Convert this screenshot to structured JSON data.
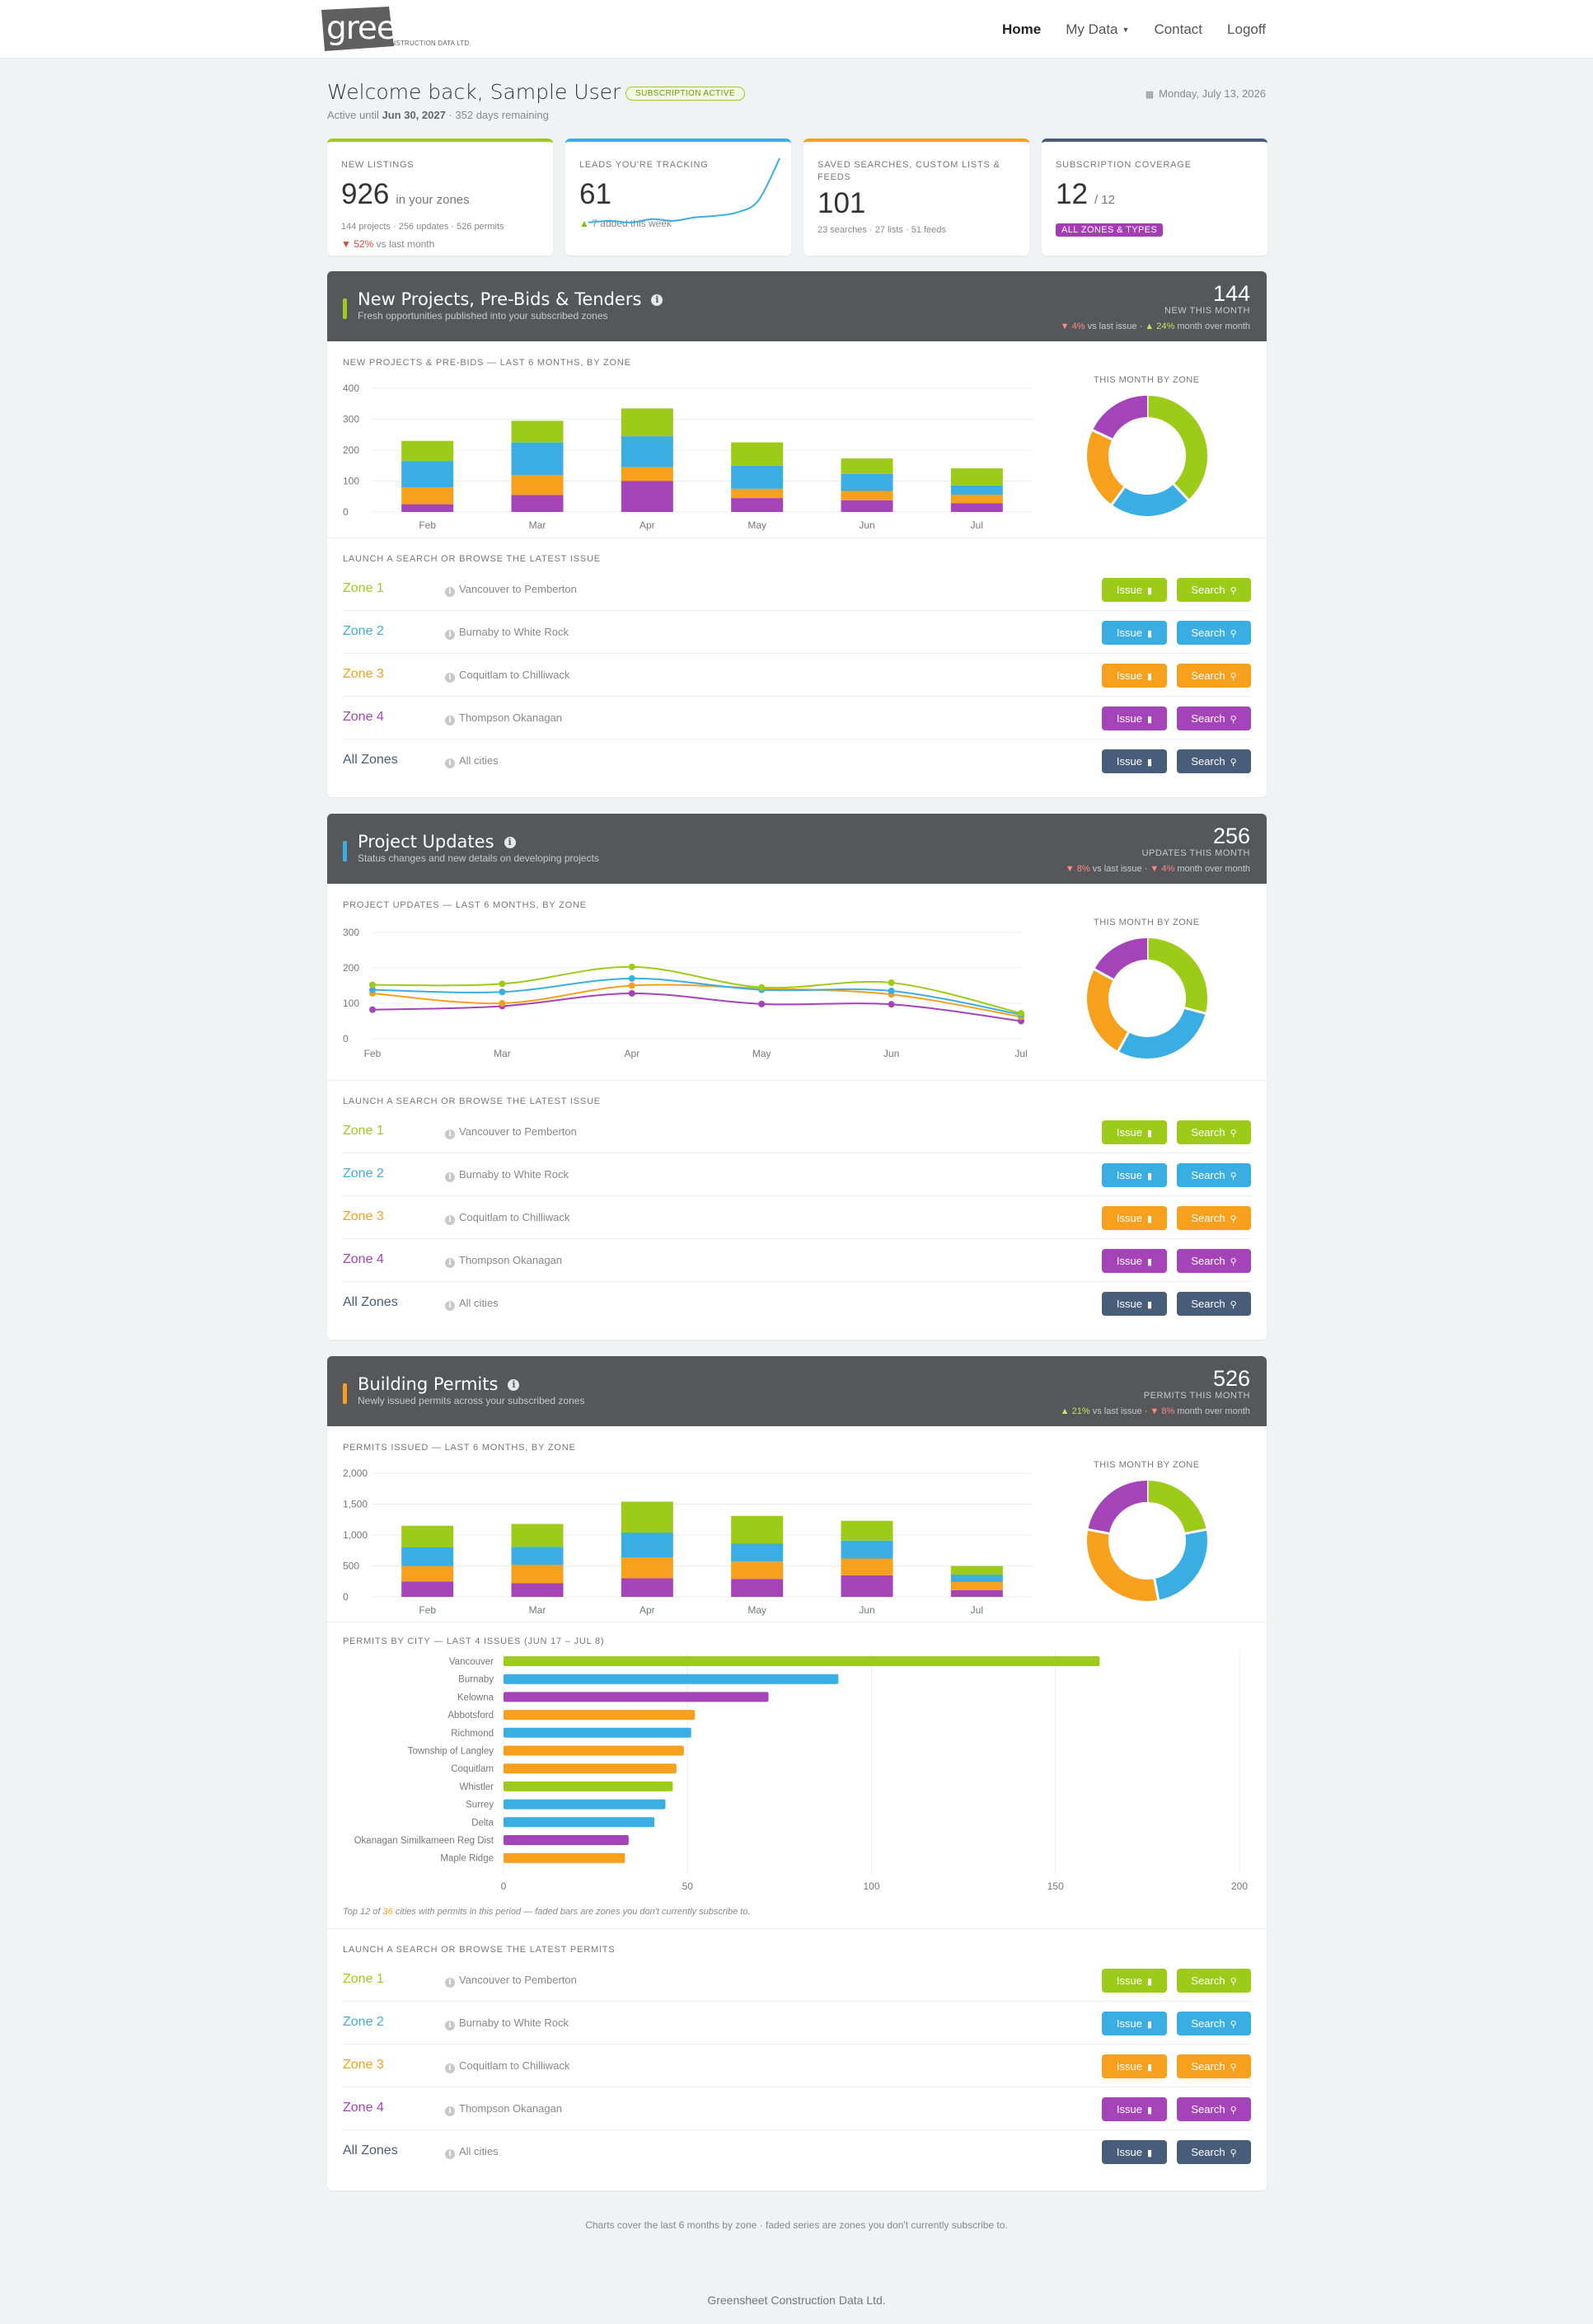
{
  "nav": {
    "logo_main": "greensheet",
    "logo_sub": "CONSTRUCTION DATA LTD.",
    "links": [
      "Home",
      "My Data",
      "Contact",
      "Logoff"
    ]
  },
  "header": {
    "welcome": "Welcome back, Sample User",
    "badge": "SUBSCRIPTION ACTIVE",
    "active_prefix": "Active until",
    "active_date": "Jun 30, 2027",
    "active_suffix": "· 352 days remaining",
    "date": "Monday, July 13, 2026"
  },
  "kpis": {
    "new_listings": {
      "label": "NEW LISTINGS",
      "value": "926",
      "unit": "in your zones",
      "sub": "144 projects · 256 updates · 526 permits",
      "delta": "52%",
      "delta_text": "vs last month"
    },
    "leads": {
      "label": "LEADS YOU'RE TRACKING",
      "value": "61",
      "delta": "7",
      "delta_text": "added this week",
      "sparkline": [
        2,
        3,
        2,
        4,
        3,
        5,
        6,
        8,
        15,
        40
      ]
    },
    "saved": {
      "label": "SAVED SEARCHES, CUSTOM LISTS & FEEDS",
      "value": "101",
      "sub": "23 searches · 27 lists · 51 feeds"
    },
    "coverage": {
      "label": "SUBSCRIPTION COVERAGE",
      "value": "12",
      "total": "/ 12",
      "tag": "ALL ZONES & TYPES"
    }
  },
  "colors": {
    "zone1": "#9ccb19",
    "zone2": "#3aaee3",
    "zone3": "#f7a01d",
    "zone4": "#a543b8",
    "all": "#475d7a",
    "head": "#56575b"
  },
  "zones": [
    {
      "name": "Zone 1",
      "desc": "Vancouver to Pemberton"
    },
    {
      "name": "Zone 2",
      "desc": "Burnaby to White Rock"
    },
    {
      "name": "Zone 3",
      "desc": "Coquitlam to Chilliwack"
    },
    {
      "name": "Zone 4",
      "desc": "Thompson Okanagan"
    },
    {
      "name": "All Zones",
      "desc": "All cities"
    }
  ],
  "buttons": {
    "issue": "Issue",
    "search": "Search"
  },
  "sections": {
    "projects": {
      "title": "New Projects, Pre-Bids & Tenders",
      "desc": "Fresh opportunities published into your subscribed zones",
      "count": "144",
      "count_label": "NEW THIS MONTH",
      "d1": "4%",
      "d1_text": "vs last issue",
      "d2": "24%",
      "d2_text": "month over month",
      "chart_title": "NEW PROJECTS & PRE-BIDS — LAST 6 MONTHS, BY ZONE",
      "donut_title": "THIS MONTH BY ZONE",
      "launch_title": "LAUNCH A SEARCH OR BROWSE THE LATEST ISSUE"
    },
    "updates": {
      "title": "Project Updates",
      "desc": "Status changes and new details on developing projects",
      "count": "256",
      "count_label": "UPDATES THIS MONTH",
      "d1": "8%",
      "d1_text": "vs last issue",
      "d2": "4%",
      "d2_text": "month over month",
      "chart_title": "PROJECT UPDATES — LAST 6 MONTHS, BY ZONE",
      "donut_title": "THIS MONTH BY ZONE",
      "launch_title": "LAUNCH A SEARCH OR BROWSE THE LATEST ISSUE"
    },
    "permits": {
      "title": "Building Permits",
      "desc": "Newly issued permits across your subscribed zones",
      "count": "526",
      "count_label": "PERMITS THIS MONTH",
      "d1": "21%",
      "d1_text": "vs last issue",
      "d2": "8%",
      "d2_text": "month over month",
      "chart_title": "PERMITS ISSUED — LAST 6 MONTHS, BY ZONE",
      "donut_title": "THIS MONTH BY ZONE",
      "city_title": "PERMITS BY CITY — LAST 4 ISSUES (JUN 17 – JUL 8)",
      "city_note_a": "Top 12 of",
      "city_note_n": "36",
      "city_note_b": "cities with permits in this period — faded bars are zones you don't currently subscribe to.",
      "launch_title": "LAUNCH A SEARCH OR BROWSE THE LATEST PERMITS"
    }
  },
  "footnote": "Charts cover the last 6 months by zone · faded series are zones you don't currently subscribe to.",
  "footer": "Greensheet Construction Data Ltd.",
  "chart_data": [
    {
      "type": "bar",
      "id": "projects-bar",
      "stacked": true,
      "categories": [
        "Feb",
        "Mar",
        "Apr",
        "May",
        "Jun",
        "Jul"
      ],
      "ylim": [
        0,
        400
      ],
      "yticks": [
        0,
        100,
        200,
        300,
        400
      ],
      "series": [
        {
          "zone": "zone4",
          "values": [
            25,
            55,
            100,
            45,
            38,
            28
          ]
        },
        {
          "zone": "zone3",
          "values": [
            55,
            65,
            45,
            30,
            30,
            28
          ]
        },
        {
          "zone": "zone2",
          "values": [
            85,
            105,
            100,
            75,
            55,
            30
          ]
        },
        {
          "zone": "zone1",
          "values": [
            65,
            70,
            90,
            75,
            50,
            55
          ]
        }
      ]
    },
    {
      "type": "pie",
      "id": "projects-donut",
      "series": [
        {
          "zone": "zone1",
          "value": 38
        },
        {
          "zone": "zone2",
          "value": 22
        },
        {
          "zone": "zone3",
          "value": 22
        },
        {
          "zone": "zone4",
          "value": 18
        }
      ]
    },
    {
      "type": "line",
      "id": "updates-line",
      "categories": [
        "Feb",
        "Mar",
        "Apr",
        "May",
        "Jun",
        "Jul"
      ],
      "ylim": [
        0,
        300
      ],
      "yticks": [
        0,
        100,
        200,
        300
      ],
      "series": [
        {
          "zone": "zone4",
          "values": [
            82,
            92,
            128,
            98,
            97,
            50
          ]
        },
        {
          "zone": "zone3",
          "values": [
            128,
            100,
            150,
            142,
            125,
            62
          ]
        },
        {
          "zone": "zone2",
          "values": [
            138,
            132,
            170,
            138,
            135,
            68
          ]
        },
        {
          "zone": "zone1",
          "values": [
            152,
            155,
            203,
            145,
            158,
            72
          ]
        }
      ]
    },
    {
      "type": "pie",
      "id": "updates-donut",
      "series": [
        {
          "zone": "zone1",
          "value": 29
        },
        {
          "zone": "zone2",
          "value": 29
        },
        {
          "zone": "zone3",
          "value": 25
        },
        {
          "zone": "zone4",
          "value": 17
        }
      ]
    },
    {
      "type": "bar",
      "id": "permits-bar",
      "stacked": true,
      "categories": [
        "Feb",
        "Mar",
        "Apr",
        "May",
        "Jun",
        "Jul"
      ],
      "ylim": [
        0,
        2000
      ],
      "yticks": [
        0,
        500,
        1000,
        1500,
        2000
      ],
      "ytick_labels": [
        "0",
        "500",
        "1,000",
        "1,500",
        "2,000"
      ],
      "series": [
        {
          "zone": "zone4",
          "values": [
            250,
            220,
            300,
            290,
            350,
            110
          ]
        },
        {
          "zone": "zone3",
          "values": [
            250,
            300,
            340,
            280,
            270,
            130
          ]
        },
        {
          "zone": "zone2",
          "values": [
            300,
            290,
            400,
            290,
            290,
            120
          ]
        },
        {
          "zone": "zone1",
          "values": [
            350,
            370,
            500,
            450,
            320,
            140
          ]
        }
      ]
    },
    {
      "type": "pie",
      "id": "permits-donut",
      "series": [
        {
          "zone": "zone1",
          "value": 22
        },
        {
          "zone": "zone2",
          "value": 25
        },
        {
          "zone": "zone3",
          "value": 31
        },
        {
          "zone": "zone4",
          "value": 22
        }
      ]
    },
    {
      "type": "bar",
      "id": "permits-city",
      "orientation": "horizontal",
      "xlim": [
        0,
        200
      ],
      "xticks": [
        0,
        50,
        100,
        150,
        200
      ],
      "categories": [
        "Vancouver",
        "Burnaby",
        "Kelowna",
        "Abbotsford",
        "Richmond",
        "Township of Langley",
        "Coquitlam",
        "Whistler",
        "Surrey",
        "Delta",
        "Okanagan Similkameen Reg Dist",
        "Maple Ridge"
      ],
      "values": [
        162,
        91,
        72,
        52,
        51,
        49,
        47,
        46,
        44,
        41,
        34,
        33
      ],
      "zones": [
        "zone1",
        "zone2",
        "zone4",
        "zone3",
        "zone2",
        "zone3",
        "zone3",
        "zone1",
        "zone2",
        "zone2",
        "zone4",
        "zone3"
      ]
    }
  ]
}
